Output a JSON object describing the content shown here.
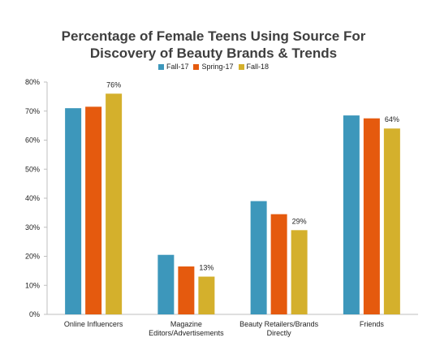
{
  "chart_data": {
    "type": "bar",
    "title_lines": [
      "Percentage of Female Teens Using Source For",
      "Discovery of Beauty Brands & Trends"
    ],
    "categories": [
      [
        "Online Influencers"
      ],
      [
        "Magazine",
        "Editors/Advertisements"
      ],
      [
        "Beauty Retailers/Brands",
        "Directly"
      ],
      [
        "Friends"
      ]
    ],
    "series": [
      {
        "name": "Fall-17",
        "color": "#3d97bb",
        "values": [
          71,
          20.5,
          39,
          68.5
        ]
      },
      {
        "name": "Spring-17",
        "color": "#e55a0e",
        "values": [
          71.5,
          16.5,
          34.5,
          67.5
        ]
      },
      {
        "name": "Fall-18",
        "color": "#d4b02c",
        "values": [
          76,
          13,
          29,
          64
        ]
      }
    ],
    "data_labels": [
      {
        "series": 2,
        "category": 0,
        "text": "76%"
      },
      {
        "series": 2,
        "category": 1,
        "text": "13%"
      },
      {
        "series": 2,
        "category": 2,
        "text": "29%"
      },
      {
        "series": 2,
        "category": 3,
        "text": "64%"
      }
    ],
    "y_ticks": [
      {
        "value": 0,
        "label": "0%"
      },
      {
        "value": 10,
        "label": "10%"
      },
      {
        "value": 20,
        "label": "20%"
      },
      {
        "value": 30,
        "label": "30%"
      },
      {
        "value": 40,
        "label": "40%"
      },
      {
        "value": 50,
        "label": "50%"
      },
      {
        "value": 60,
        "label": "60%"
      },
      {
        "value": 70,
        "label": "70%"
      },
      {
        "value": 80,
        "label": "80%"
      }
    ],
    "ylim": [
      0,
      80
    ],
    "grid": false,
    "legend_position": "top-center",
    "axis_color": "#bfbfbf"
  }
}
